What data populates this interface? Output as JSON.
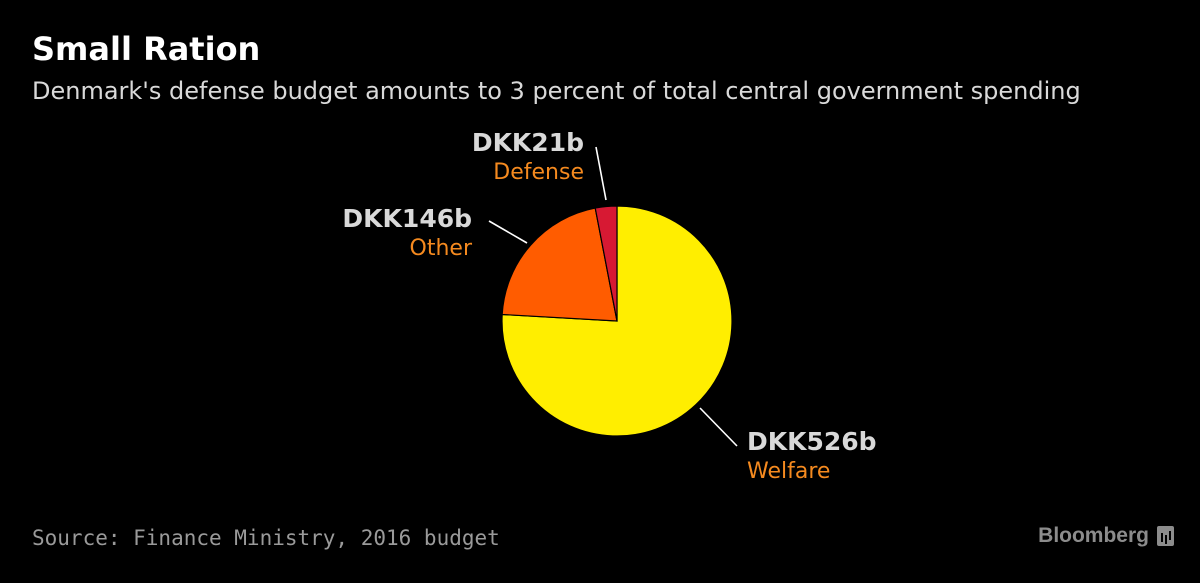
{
  "title": "Small Ration",
  "subtitle": "Denmark's defense budget amounts to 3 percent of total central government spending",
  "source": "Source: Finance Ministry, 2016 budget",
  "brand": "Bloomberg",
  "chart_data": {
    "type": "pie",
    "slices": [
      {
        "label": "Welfare",
        "value": 526,
        "value_label": "DKK526b",
        "color": "#ffee00"
      },
      {
        "label": "Other",
        "value": 146,
        "value_label": "DKK146b",
        "color": "#ff5c00"
      },
      {
        "label": "Defense",
        "value": 21,
        "value_label": "DKK21b",
        "color": "#d71933"
      }
    ],
    "start": "12 o'clock",
    "direction": "clockwise"
  },
  "colors": {
    "background": "#000000",
    "value_label": "#d9d9d9",
    "category_label": "#f58a1f",
    "leader_line": "#ffffff"
  }
}
